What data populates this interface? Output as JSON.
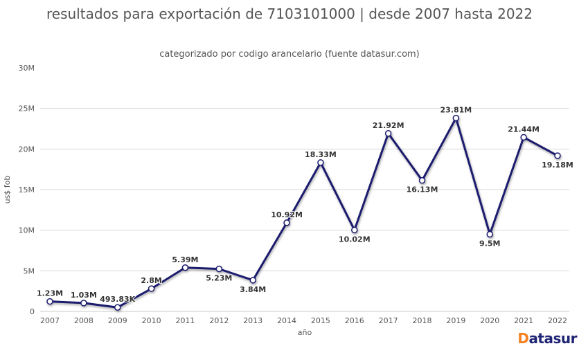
{
  "title": "resultados para exportación de 7103101000 | desde 2007 hasta 2022",
  "subtitle": "categorizado por codigo arancelario (fuente datasur.com)",
  "logo": {
    "first_letter": "D",
    "rest": "atasur"
  },
  "colors": {
    "title_text": "#555555",
    "line": "#1a1a6e",
    "marker_fill": "#ffffff",
    "grid": "#d8d8d8",
    "axis_line": "#c8c8c8",
    "tick_text": "#555555",
    "data_label_text": "#333333",
    "logo_orange": "#f58220",
    "logo_navy": "#1f2475"
  },
  "chart_data": {
    "type": "line",
    "title": "resultados para exportación de 7103101000 | desde 2007 hasta 2022",
    "subtitle": "categorizado por codigo arancelario (fuente datasur.com)",
    "x": [
      "2007",
      "2008",
      "2009",
      "2010",
      "2011",
      "2012",
      "2013",
      "2014",
      "2015",
      "2016",
      "2017",
      "2018",
      "2019",
      "2020",
      "2021",
      "2022"
    ],
    "values": [
      1230000,
      1030000,
      493830,
      2800000,
      5390000,
      5230000,
      3840000,
      10920000,
      18330000,
      10020000,
      21920000,
      16130000,
      23810000,
      9500000,
      21440000,
      19180000
    ],
    "point_labels": [
      "1.23M",
      "1.03M",
      "493.83K",
      "2.8M",
      "5.39M",
      "5.23M",
      "3.84M",
      "10.92M",
      "18.33M",
      "10.02M",
      "21.92M",
      "16.13M",
      "23.81M",
      "9.5M",
      "21.44M",
      "19.18M"
    ],
    "label_positions": [
      "above",
      "above",
      "above",
      "above",
      "above",
      "below",
      "below",
      "above",
      "above",
      "below",
      "above",
      "below",
      "above",
      "below",
      "above",
      "below"
    ],
    "xlabel": "año",
    "ylabel": "us$ fob",
    "ylim": [
      0,
      30000000
    ],
    "ytick_values": [
      0,
      5000000,
      10000000,
      15000000,
      20000000,
      25000000,
      30000000
    ],
    "ytick_labels": [
      "0",
      "5M",
      "10M",
      "15M",
      "20M",
      "25M",
      "30M"
    ],
    "grid": true,
    "legend": false
  }
}
